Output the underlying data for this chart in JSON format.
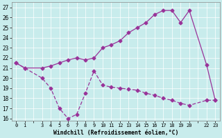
{
  "background_color": "#c8ecec",
  "line_color": "#993399",
  "ylim": [
    15.8,
    27.5
  ],
  "yticks": [
    16,
    17,
    18,
    19,
    20,
    21,
    22,
    23,
    24,
    25,
    26,
    27
  ],
  "xlabel": "Windchill (Refroidissement éolien,°C)",
  "xlim": [
    -0.5,
    23.5
  ],
  "hours": [
    0,
    1,
    3,
    4,
    5,
    6,
    7,
    8,
    9,
    10,
    11,
    12,
    13,
    14,
    15,
    16,
    17,
    18,
    19,
    20,
    22,
    23
  ],
  "temp_solid": [
    21.5,
    21.0,
    21.0,
    21.2,
    21.5,
    21.8,
    22.0,
    21.8,
    22.0,
    23.0,
    23.3,
    23.7,
    24.5,
    25.0,
    25.5,
    26.3,
    26.7,
    26.7,
    25.5,
    26.7,
    21.3,
    17.8
  ],
  "wc_dashed": [
    21.5,
    21.0,
    20.0,
    19.0,
    17.0,
    16.0,
    16.4,
    18.5,
    20.7,
    19.3,
    19.1,
    19.0,
    18.9,
    18.8,
    18.5,
    18.3,
    18.0,
    17.8,
    17.5,
    17.3,
    17.8,
    17.8
  ],
  "skip_xticks": [
    2,
    21
  ],
  "marker": "D",
  "markersize": 2.5,
  "linewidth": 0.9,
  "tick_fontsize": 5.0,
  "xlabel_fontsize": 5.8
}
